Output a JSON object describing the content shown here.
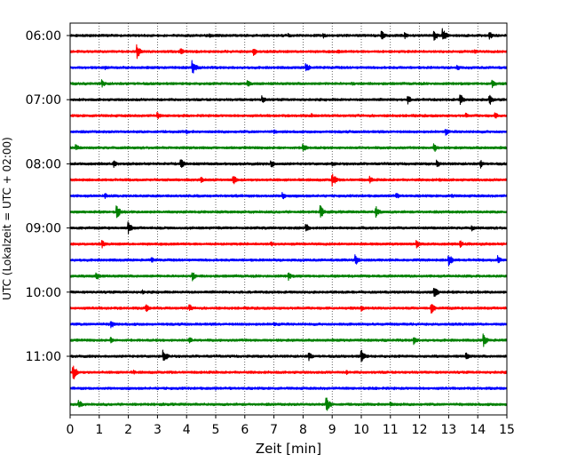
{
  "chart_data": {
    "type": "line",
    "title": "",
    "xlabel": "Zeit  [min]",
    "ylabel": "UTC (Lokalzeit = UTC + 02:00)",
    "xlim": [
      0,
      15
    ],
    "x_ticks": [
      0,
      1,
      2,
      3,
      4,
      5,
      6,
      7,
      8,
      9,
      10,
      11,
      12,
      13,
      14,
      15
    ],
    "x_tick_labels": [
      "0",
      "1",
      "2",
      "3",
      "4",
      "5",
      "6",
      "7",
      "8",
      "9",
      "10",
      "11",
      "12",
      "13",
      "14",
      "15"
    ],
    "y_tick_labels": [
      "06:00",
      "07:00",
      "08:00",
      "09:00",
      "10:00",
      "11:00"
    ],
    "y_tick_rows": [
      0,
      4,
      8,
      12,
      16,
      20
    ],
    "row_minutes": 15,
    "vertical_grid": true,
    "grid_style": "dotted",
    "colors": [
      "#000000",
      "#ff0000",
      "#0000ff",
      "#008000"
    ],
    "series": [
      {
        "row": 0,
        "color": "#000000",
        "events": [
          {
            "x": 4.8,
            "amp": 0.35
          },
          {
            "x": 7.5,
            "amp": 0.3
          },
          {
            "x": 8.7,
            "amp": 0.35
          },
          {
            "x": 10.7,
            "amp": 0.8
          },
          {
            "x": 11.5,
            "amp": 0.4
          },
          {
            "x": 12.5,
            "amp": 0.75
          },
          {
            "x": 12.8,
            "amp": 0.95
          },
          {
            "x": 14.4,
            "amp": 0.55
          }
        ]
      },
      {
        "row": 1,
        "color": "#ff0000",
        "events": [
          {
            "x": 2.3,
            "amp": 0.9
          },
          {
            "x": 3.8,
            "amp": 0.5
          },
          {
            "x": 6.3,
            "amp": 0.6
          },
          {
            "x": 9.2,
            "amp": 0.3
          },
          {
            "x": 13.9,
            "amp": 0.35
          }
        ]
      },
      {
        "row": 2,
        "color": "#0000ff",
        "events": [
          {
            "x": 1.2,
            "amp": 0.3
          },
          {
            "x": 4.2,
            "amp": 1.0
          },
          {
            "x": 8.1,
            "amp": 0.7
          },
          {
            "x": 13.3,
            "amp": 0.4
          }
        ]
      },
      {
        "row": 3,
        "color": "#008000",
        "events": [
          {
            "x": 1.1,
            "amp": 0.5
          },
          {
            "x": 6.1,
            "amp": 0.45
          },
          {
            "x": 9.7,
            "amp": 0.3
          },
          {
            "x": 14.5,
            "amp": 0.7
          }
        ]
      },
      {
        "row": 4,
        "color": "#000000",
        "events": [
          {
            "x": 6.6,
            "amp": 0.55
          },
          {
            "x": 11.6,
            "amp": 0.6
          },
          {
            "x": 13.4,
            "amp": 0.75
          },
          {
            "x": 14.4,
            "amp": 0.75
          }
        ]
      },
      {
        "row": 5,
        "color": "#ff0000",
        "events": [
          {
            "x": 3.0,
            "amp": 0.45
          },
          {
            "x": 8.3,
            "amp": 0.3
          },
          {
            "x": 13.6,
            "amp": 0.35
          },
          {
            "x": 14.6,
            "amp": 0.45
          }
        ]
      },
      {
        "row": 6,
        "color": "#0000ff",
        "events": [
          {
            "x": 4.0,
            "amp": 0.3
          },
          {
            "x": 7.0,
            "amp": 0.3
          },
          {
            "x": 12.9,
            "amp": 0.5
          }
        ]
      },
      {
        "row": 7,
        "color": "#008000",
        "events": [
          {
            "x": 0.2,
            "amp": 0.45
          },
          {
            "x": 8.0,
            "amp": 0.65
          },
          {
            "x": 12.5,
            "amp": 0.6
          }
        ]
      },
      {
        "row": 8,
        "color": "#000000",
        "events": [
          {
            "x": 1.5,
            "amp": 0.45
          },
          {
            "x": 3.8,
            "amp": 0.7
          },
          {
            "x": 6.9,
            "amp": 0.6
          },
          {
            "x": 9.0,
            "amp": 0.4
          },
          {
            "x": 12.6,
            "amp": 0.5
          },
          {
            "x": 14.1,
            "amp": 0.55
          }
        ]
      },
      {
        "row": 9,
        "color": "#ff0000",
        "events": [
          {
            "x": 4.5,
            "amp": 0.4
          },
          {
            "x": 5.6,
            "amp": 0.7
          },
          {
            "x": 9.0,
            "amp": 1.0
          },
          {
            "x": 10.3,
            "amp": 0.5
          },
          {
            "x": 12.7,
            "amp": 0.3
          }
        ]
      },
      {
        "row": 10,
        "color": "#0000ff",
        "events": [
          {
            "x": 1.2,
            "amp": 0.4
          },
          {
            "x": 7.3,
            "amp": 0.5
          },
          {
            "x": 11.2,
            "amp": 0.45
          },
          {
            "x": 13.1,
            "amp": 0.35
          }
        ]
      },
      {
        "row": 11,
        "color": "#008000",
        "events": [
          {
            "x": 1.6,
            "amp": 0.9
          },
          {
            "x": 8.6,
            "amp": 0.85
          },
          {
            "x": 10.5,
            "amp": 0.8
          }
        ]
      },
      {
        "row": 12,
        "color": "#000000",
        "events": [
          {
            "x": 2.0,
            "amp": 0.8
          },
          {
            "x": 8.1,
            "amp": 0.75
          },
          {
            "x": 13.8,
            "amp": 0.4
          }
        ]
      },
      {
        "row": 13,
        "color": "#ff0000",
        "events": [
          {
            "x": 1.1,
            "amp": 0.5
          },
          {
            "x": 6.9,
            "amp": 0.35
          },
          {
            "x": 11.9,
            "amp": 0.5
          },
          {
            "x": 13.4,
            "amp": 0.5
          }
        ]
      },
      {
        "row": 14,
        "color": "#0000ff",
        "events": [
          {
            "x": 2.8,
            "amp": 0.4
          },
          {
            "x": 9.8,
            "amp": 0.7
          },
          {
            "x": 13.0,
            "amp": 0.9
          },
          {
            "x": 14.7,
            "amp": 0.6
          }
        ]
      },
      {
        "row": 15,
        "color": "#008000",
        "events": [
          {
            "x": 0.9,
            "amp": 0.6
          },
          {
            "x": 4.2,
            "amp": 0.6
          },
          {
            "x": 7.5,
            "amp": 0.6
          }
        ]
      },
      {
        "row": 16,
        "color": "#000000",
        "events": [
          {
            "x": 2.5,
            "amp": 0.3
          },
          {
            "x": 12.5,
            "amp": 0.9
          }
        ]
      },
      {
        "row": 17,
        "color": "#ff0000",
        "events": [
          {
            "x": 2.6,
            "amp": 0.55
          },
          {
            "x": 4.1,
            "amp": 0.5
          },
          {
            "x": 10.0,
            "amp": 0.4
          },
          {
            "x": 12.4,
            "amp": 0.8
          }
        ]
      },
      {
        "row": 18,
        "color": "#0000ff",
        "events": [
          {
            "x": 1.4,
            "amp": 0.6
          },
          {
            "x": 7.0,
            "amp": 0.3
          }
        ]
      },
      {
        "row": 19,
        "color": "#008000",
        "events": [
          {
            "x": 1.4,
            "amp": 0.4
          },
          {
            "x": 4.1,
            "amp": 0.45
          },
          {
            "x": 11.8,
            "amp": 0.6
          },
          {
            "x": 14.2,
            "amp": 0.8
          }
        ]
      },
      {
        "row": 20,
        "color": "#000000",
        "events": [
          {
            "x": 3.2,
            "amp": 0.95
          },
          {
            "x": 8.2,
            "amp": 0.6
          },
          {
            "x": 10.0,
            "amp": 1.0
          },
          {
            "x": 13.6,
            "amp": 0.55
          }
        ]
      },
      {
        "row": 21,
        "color": "#ff0000",
        "events": [
          {
            "x": 0.1,
            "amp": 1.1
          },
          {
            "x": 2.2,
            "amp": 0.3
          },
          {
            "x": 9.5,
            "amp": 0.3
          }
        ]
      },
      {
        "row": 22,
        "color": "#0000ff",
        "events": [
          {
            "x": 5.0,
            "amp": 0.25
          },
          {
            "x": 10.5,
            "amp": 0.25
          }
        ]
      },
      {
        "row": 23,
        "color": "#008000",
        "events": [
          {
            "x": 0.3,
            "amp": 0.6
          },
          {
            "x": 8.8,
            "amp": 1.1
          },
          {
            "x": 11.0,
            "amp": 0.35
          }
        ]
      }
    ]
  }
}
